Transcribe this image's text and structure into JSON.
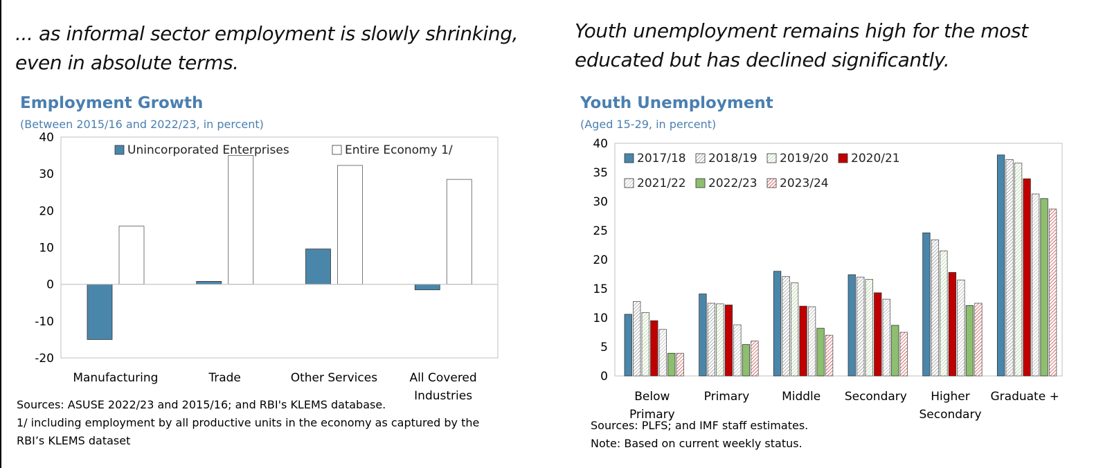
{
  "left": {
    "headline_line1": "... as informal sector employment is slowly shrinking,",
    "headline_line2": "even in absolute terms.",
    "chart_title": "Employment Growth",
    "chart_subtitle": "(Between 2015/16 and 2022/23, in percent)",
    "note_sources": "Sources: ASUSE 2022/23 and 2015/16; and RBI's KLEMS database.",
    "note_1_line1": "1/ including employment by all productive units in the economy as captured by the",
    "note_1_line2": "RBI’s KLEMS dataset"
  },
  "right": {
    "headline_line1": "Youth unemployment remains high for the most",
    "headline_line2": "educated but has declined significantly.",
    "chart_title": "Youth Unemployment",
    "chart_subtitle": "(Aged 15-29, in percent)",
    "note_sources": "Sources: PLFS; and IMF staff estimates.",
    "note_status": "Note: Based on current weekly status."
  },
  "chart_data": [
    {
      "type": "bar",
      "title": "Employment Growth",
      "subtitle": "(Between 2015/16 and 2022/23, in percent)",
      "categories": [
        [
          "Manufacturing"
        ],
        [
          "Trade"
        ],
        [
          "Other Services"
        ],
        [
          "All Covered",
          "Industries"
        ]
      ],
      "series": [
        {
          "name": "Unincorporated Enterprises",
          "values": [
            -15,
            0.8,
            9.6,
            -1.5
          ],
          "color": "#4a86aa",
          "pattern": "solid"
        },
        {
          "name": "Entire Economy 1/",
          "values": [
            15.8,
            35,
            32.3,
            28.5
          ],
          "color": "#ffffff",
          "pattern": "hatch"
        }
      ],
      "yticks": [
        40,
        30,
        20,
        10,
        0,
        -10,
        -20
      ],
      "ylim": [
        -20,
        40
      ],
      "xlabel": "",
      "ylabel": "",
      "grid": false,
      "legend": "top"
    },
    {
      "type": "bar",
      "title": "Youth Unemployment",
      "subtitle": "(Aged 15-29, in percent)",
      "categories": [
        [
          "Below",
          "Primary"
        ],
        [
          "Primary"
        ],
        [
          "Middle"
        ],
        [
          "Secondary"
        ],
        [
          "Higher",
          "Secondary"
        ],
        [
          "Graduate +"
        ]
      ],
      "series": [
        {
          "name": "2017/18",
          "values": [
            10.6,
            14.1,
            18.0,
            17.4,
            24.6,
            38.0
          ],
          "color": "#4a86aa",
          "pattern": "solid"
        },
        {
          "name": "2018/19",
          "values": [
            12.8,
            12.5,
            17.1,
            17.0,
            23.4,
            37.2
          ],
          "color": "#707070",
          "pattern": "hatch"
        },
        {
          "name": "2019/20",
          "values": [
            10.9,
            12.4,
            16.0,
            16.6,
            21.5,
            36.6
          ],
          "color": "#8dbf6e",
          "pattern": "hatch"
        },
        {
          "name": "2020/21",
          "values": [
            9.5,
            12.2,
            12.0,
            14.3,
            17.8,
            33.9
          ],
          "color": "#c00000",
          "pattern": "solid"
        },
        {
          "name": "2021/22",
          "values": [
            8.0,
            8.8,
            11.9,
            13.2,
            16.5,
            31.3
          ],
          "color": "#9a9a9a",
          "pattern": "hatch"
        },
        {
          "name": "2022/23",
          "values": [
            3.9,
            5.4,
            8.2,
            8.7,
            12.1,
            30.5
          ],
          "color": "#8dbf6e",
          "pattern": "solid"
        },
        {
          "name": "2023/24",
          "values": [
            3.9,
            6.0,
            7.0,
            7.5,
            12.5,
            28.7
          ],
          "color": "#c00000",
          "pattern": "hatch"
        }
      ],
      "yticks": [
        40,
        35,
        30,
        25,
        20,
        15,
        10,
        5,
        0
      ],
      "ylim": [
        0,
        40
      ],
      "xlabel": "",
      "ylabel": "",
      "grid": false,
      "legend": "top-left"
    }
  ]
}
